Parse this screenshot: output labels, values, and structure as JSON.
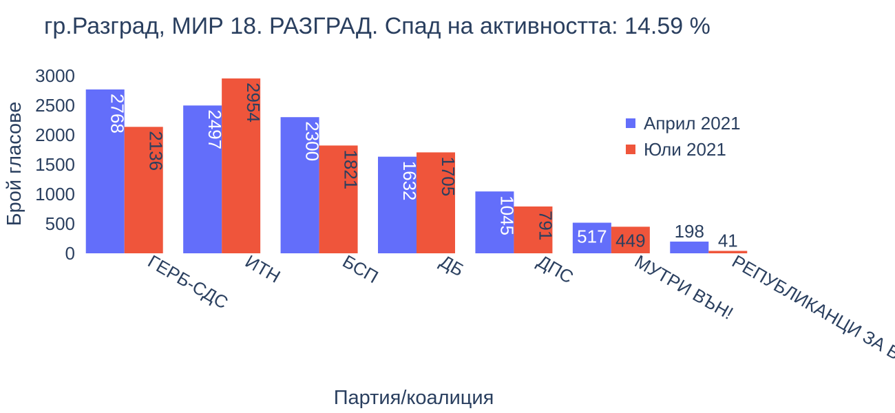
{
  "colors": {
    "series_april": "#636efa",
    "series_july": "#ef553b",
    "text": "#2a3f5f",
    "label_inside": "#ffffff",
    "background": "#ffffff"
  },
  "chart_data": {
    "type": "bar",
    "title": "гр.Разград, МИР 18. РАЗГРАД. Спад на активността: 14.59 %",
    "xlabel": "Партия/коалиция",
    "ylabel": "Брой гласове",
    "ylim": [
      0,
      3000
    ],
    "yticks": [
      "0",
      "500",
      "1000",
      "1500",
      "2000",
      "2500",
      "3000"
    ],
    "grid": false,
    "legend_position": "right",
    "categories": [
      "ГЕРБ-СДС",
      "ИТН",
      "БСП",
      "ДБ",
      "ДПС",
      "МУТРИ ВЪН!",
      "РЕПУБЛИКАНЦИ ЗА БГ"
    ],
    "series": [
      {
        "name": "Април 2021",
        "values": [
          2768,
          2497,
          2300,
          1632,
          1045,
          517,
          198
        ]
      },
      {
        "name": "Юли 2021",
        "values": [
          2136,
          2954,
          1821,
          1705,
          791,
          449,
          41
        ]
      }
    ]
  }
}
